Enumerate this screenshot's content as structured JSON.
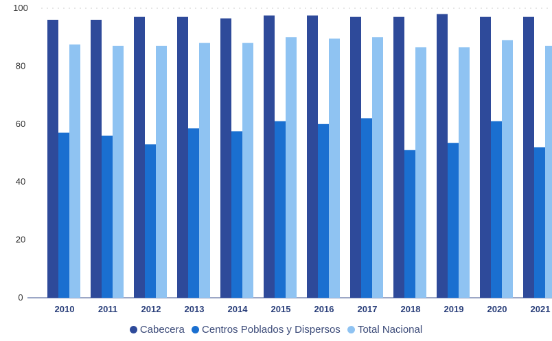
{
  "chart_data": {
    "type": "bar",
    "title": "",
    "xlabel": "",
    "ylabel": "",
    "ylim": [
      0,
      100
    ],
    "yticks": [
      0,
      20,
      40,
      60,
      80,
      100
    ],
    "grid": false,
    "legend_position": "bottom",
    "categories": [
      "2010",
      "2011",
      "2012",
      "2013",
      "2014",
      "2015",
      "2016",
      "2017",
      "2018",
      "2019",
      "2020",
      "2021"
    ],
    "series": [
      {
        "name": "Cabecera",
        "color": "#2e4a9a",
        "values": [
          96,
          96,
          97,
          97,
          96.5,
          97.5,
          97.5,
          97,
          97,
          98,
          97,
          97
        ]
      },
      {
        "name": "Centros Poblados y Dispersos",
        "color": "#1a6fd0",
        "values": [
          57,
          56,
          53,
          58.5,
          57.5,
          61,
          60,
          62,
          51,
          53.5,
          61,
          52
        ]
      },
      {
        "name": "Total Nacional",
        "color": "#8fc3f2",
        "values": [
          87.5,
          87,
          87,
          88,
          88,
          90,
          89.5,
          90,
          86.5,
          86.5,
          89,
          87
        ]
      }
    ]
  }
}
